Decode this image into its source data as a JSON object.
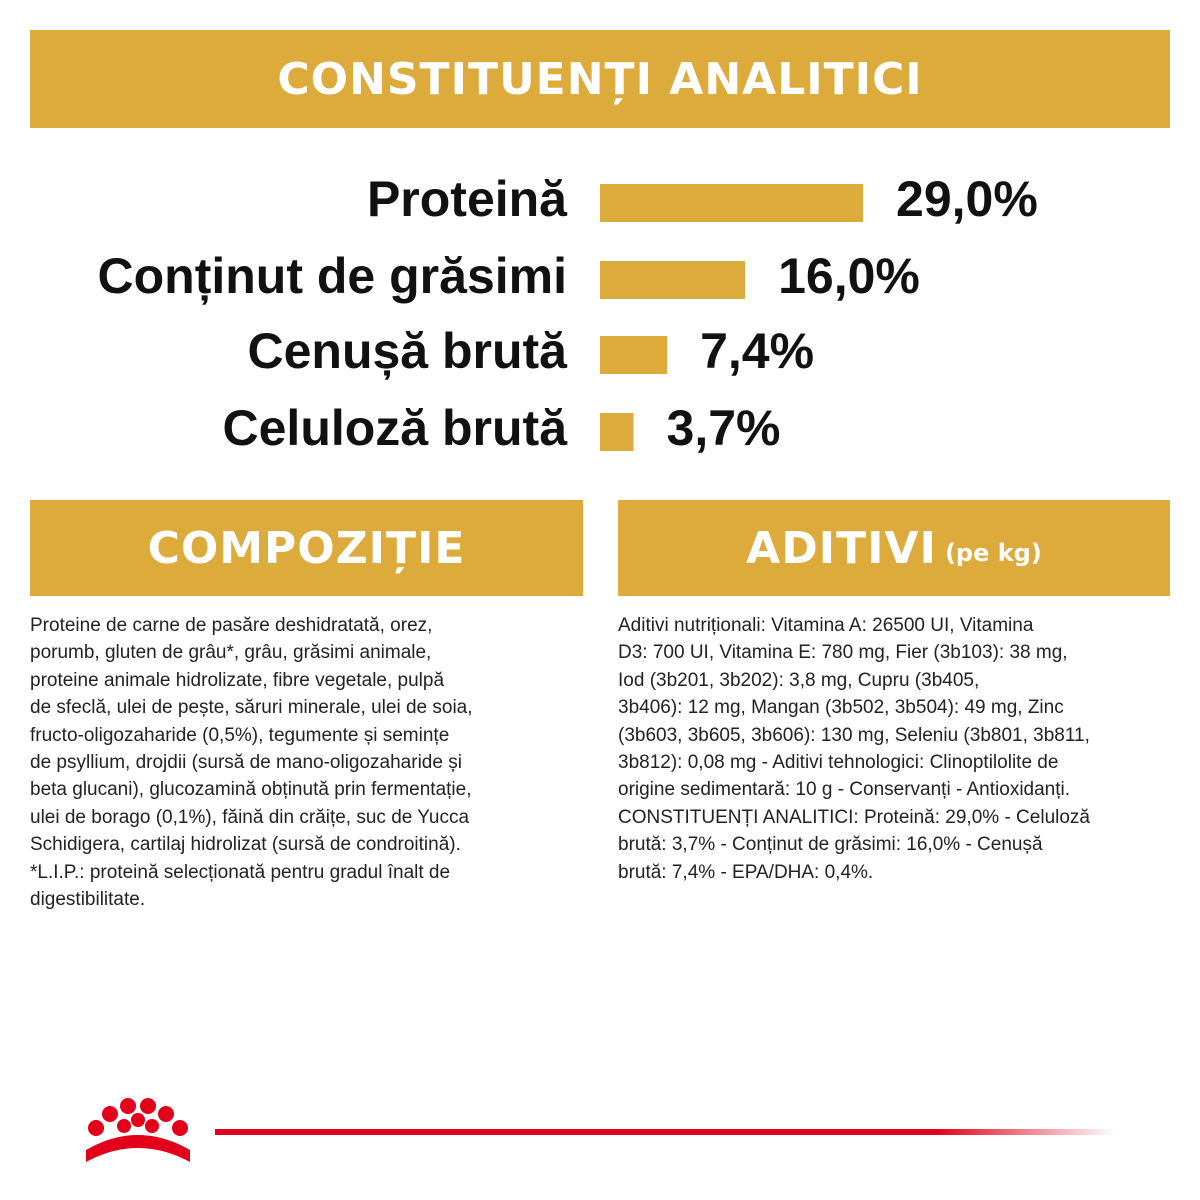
{
  "header": {
    "title": "CONSTITUENȚI ANALITICI"
  },
  "chart_data": {
    "type": "bar",
    "orientation": "horizontal",
    "categories": [
      "Proteină",
      "Conținut de grăsimi",
      "Cenușă brută",
      "Celuloză brută"
    ],
    "values": [
      29.0,
      16.0,
      7.4,
      3.7
    ],
    "value_labels": [
      "29,0%",
      "16,0%",
      "7,4%",
      "3,7%"
    ],
    "color": "#DCAB3C"
  },
  "composition": {
    "title": "COMPOZIȚIE",
    "lines": [
      "Proteine de carne de pasăre deshidratată, orez,",
      "porumb, gluten de grâu*, grâu, grăsimi animale,",
      "proteine animale hidrolizate, fibre vegetale, pulpă",
      "de sfeclă, ulei de pește, săruri minerale, ulei de soia,",
      "fructo-oligozaharide (0,5%), tegumente și semințe",
      "de psyllium, drojdii (sursă de mano-oligozaharide și",
      "beta glucani), glucozamină obținută prin fermentație,",
      "ulei de borago (0,1%), făină din crăițe, suc de Yucca",
      "Schidigera, cartilaj hidrolizat (sursă de condroitină).",
      "*L.I.P.: proteină selecționată pentru gradul înalt de",
      "digestibilitate."
    ]
  },
  "additives": {
    "title": "ADITIVI",
    "title_note": "(pe kg)",
    "lines": [
      "Aditivi nutriționali: Vitamina A: 26500 UI, Vitamina",
      "D3: 700 UI, Vitamina E: 780 mg, Fier (3b103): 38 mg,",
      "Iod (3b201, 3b202): 3,8 mg, Cupru (3b405,",
      "3b406): 12 mg, Mangan (3b502, 3b504): 49 mg, Zinc",
      "(3b603, 3b605, 3b606): 130 mg, Seleniu (3b801, 3b811,",
      "3b812): 0,08 mg - Aditivi tehnologici: Clinoptilolite de",
      "origine sedimentară: 10 g - Conservanți - Antioxidanți.",
      "CONSTITUENȚI ANALITICI: Proteină: 29,0% - Celuloză",
      "brută: 3,7% - Conținut de grăsimi: 16,0% - Cenușă",
      "brută: 7,4% - EPA/DHA: 0,4%."
    ]
  }
}
